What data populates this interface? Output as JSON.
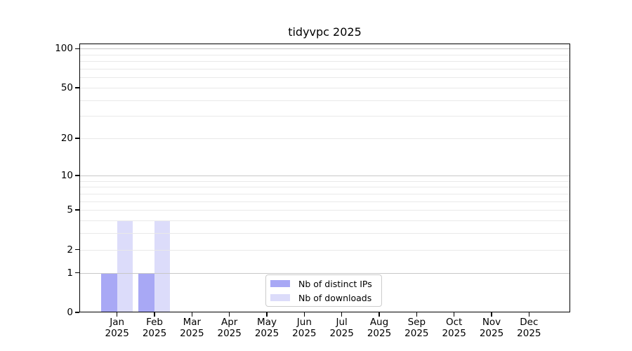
{
  "chart_data": {
    "type": "bar",
    "title": "tidyvpc 2025",
    "categories": [
      "Jan",
      "Feb",
      "Mar",
      "Apr",
      "May",
      "Jun",
      "Jul",
      "Aug",
      "Sep",
      "Oct",
      "Nov",
      "Dec"
    ],
    "category_year": "2025",
    "series": [
      {
        "name": "Nb of distinct IPs",
        "color": "#a8a8f5",
        "values": [
          1,
          1,
          0,
          0,
          0,
          0,
          0,
          0,
          0,
          0,
          0,
          0
        ]
      },
      {
        "name": "Nb of downloads",
        "color": "#dcdcfa",
        "values": [
          4,
          4,
          0,
          0,
          0,
          0,
          0,
          0,
          0,
          0,
          0,
          0
        ]
      }
    ],
    "xlabel": "",
    "ylabel": "",
    "yscale": "log1p",
    "ylim": [
      0,
      111
    ],
    "ytick_labels": [
      0,
      1,
      2,
      5,
      10,
      20,
      50,
      100
    ],
    "grid": {
      "minor_values": [
        2,
        3,
        4,
        5,
        6,
        7,
        8,
        9,
        20,
        30,
        40,
        50,
        60,
        70,
        80,
        90
      ],
      "major_values": [
        1,
        10,
        100
      ],
      "minor_color": "#e9e9e9",
      "major_color": "#c8c8c8"
    },
    "legend": {
      "position": "inside-bottom-center",
      "border_color": "#cccccc"
    },
    "colors": {
      "axis": "#000000",
      "background": "#ffffff"
    }
  }
}
